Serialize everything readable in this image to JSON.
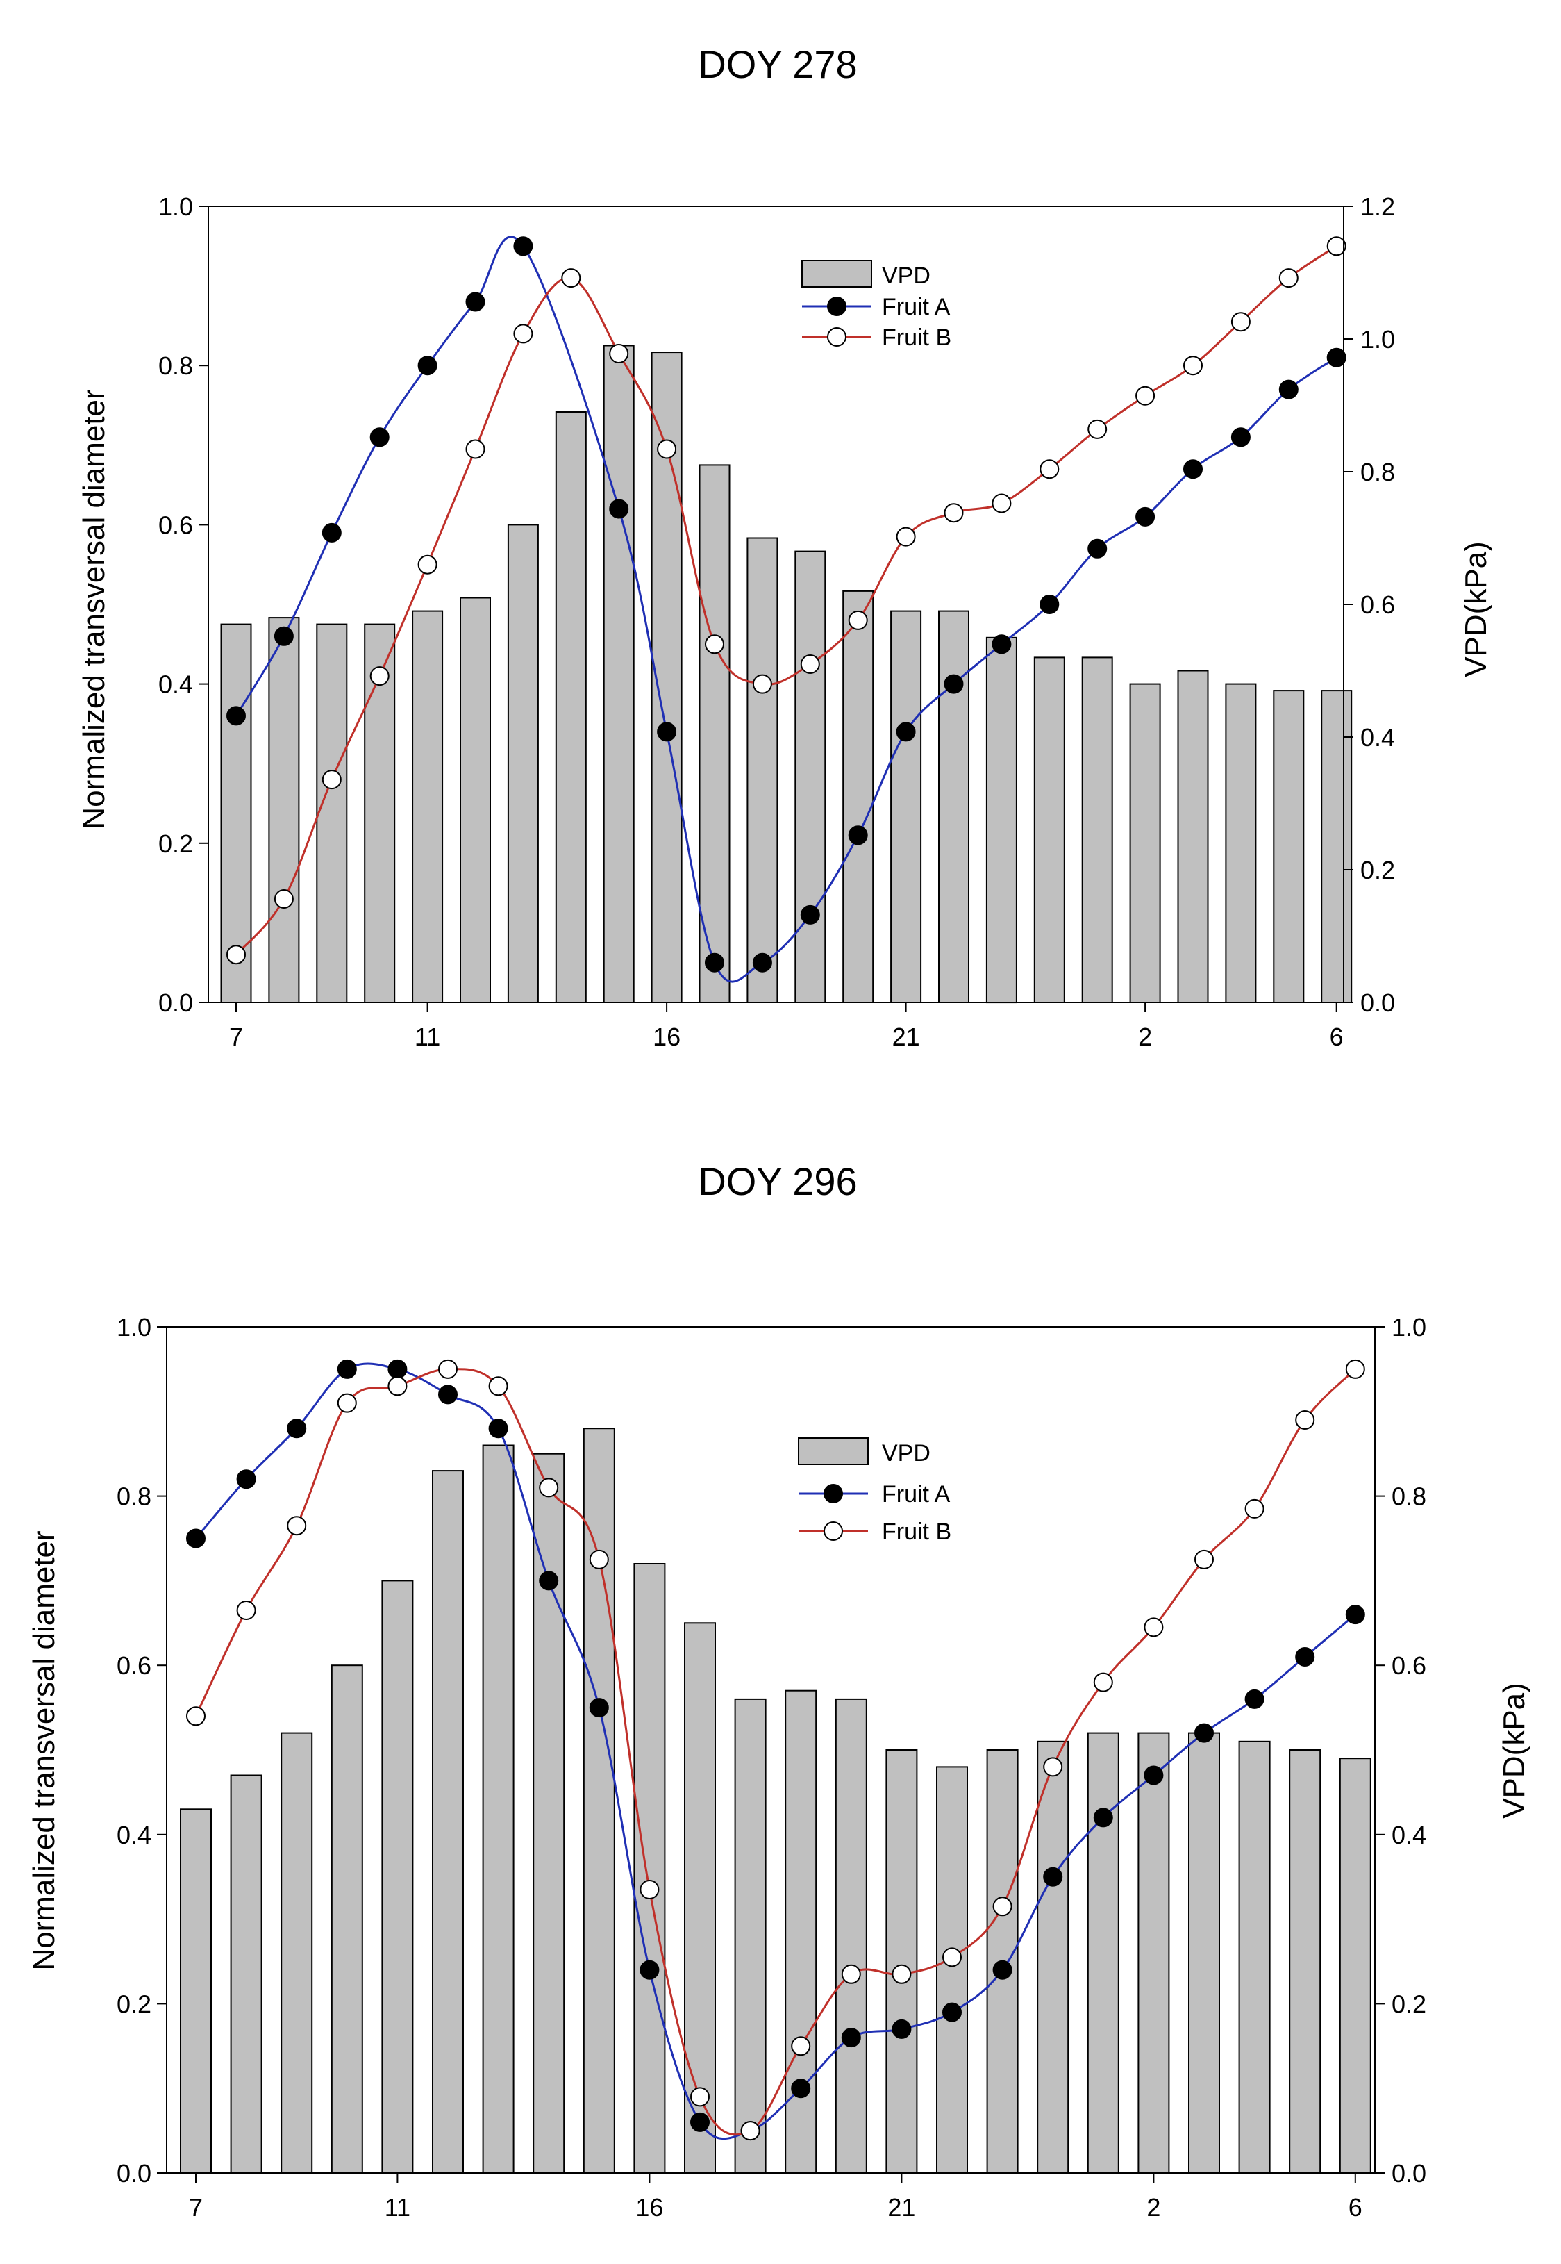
{
  "chart_data": [
    {
      "type": "bar+line",
      "title": "DOY 278",
      "ylabel": "Normalized transversal diameter",
      "y2label": "VPD(kPa)",
      "ylim": [
        0,
        1.0
      ],
      "y2lim": [
        0,
        1.2
      ],
      "x_tick_labels": [
        "7",
        "11",
        "16",
        "21",
        "2",
        "6"
      ],
      "y_ticks": [
        "0.0",
        "0.2",
        "0.4",
        "0.6",
        "0.8",
        "1.0"
      ],
      "y2_ticks": [
        "0.0",
        "0.2",
        "0.4",
        "0.6",
        "0.8",
        "1.0",
        "1.2"
      ],
      "hours": [
        7,
        8,
        9,
        10,
        11,
        12,
        13,
        14,
        15,
        16,
        17,
        18,
        19,
        20,
        21,
        22,
        23,
        0,
        1,
        2,
        3,
        4,
        5,
        6
      ],
      "legend": [
        "VPD",
        "Fruit A",
        "Fruit B"
      ],
      "series": [
        {
          "name": "VPD",
          "axis": "right",
          "kind": "bar",
          "color": "#c0c0c0",
          "values": [
            0.57,
            0.58,
            0.57,
            0.57,
            0.59,
            0.61,
            0.72,
            0.89,
            0.99,
            0.98,
            0.81,
            0.7,
            0.68,
            0.62,
            0.59,
            0.59,
            0.55,
            0.52,
            0.52,
            0.48,
            0.5,
            0.48,
            0.47,
            0.47
          ]
        },
        {
          "name": "Fruit A",
          "axis": "left",
          "kind": "line",
          "color": "#1f2fb4",
          "marker": "filled",
          "values": [
            0.36,
            0.46,
            0.59,
            0.71,
            0.8,
            0.88,
            0.95,
            null,
            0.62,
            0.34,
            0.05,
            0.05,
            0.11,
            0.21,
            0.34,
            0.4,
            0.45,
            0.5,
            0.57,
            0.61,
            0.67,
            0.71,
            0.77,
            0.81
          ]
        },
        {
          "name": "Fruit B",
          "axis": "left",
          "kind": "line",
          "color": "#c0302a",
          "marker": "open",
          "values": [
            0.06,
            0.13,
            0.28,
            0.41,
            0.55,
            0.695,
            0.84,
            0.91,
            0.815,
            0.695,
            0.45,
            0.4,
            0.425,
            0.48,
            0.585,
            0.615,
            0.627,
            0.67,
            0.72,
            0.762,
            0.8,
            0.855,
            0.91,
            0.95
          ]
        }
      ]
    },
    {
      "type": "bar+line",
      "title": "DOY 296",
      "ylabel": "Normalized transversal diameter",
      "y2label": "VPD(kPa)",
      "ylim": [
        0,
        1.0
      ],
      "y2lim": [
        0,
        1.0
      ],
      "x_tick_labels": [
        "7",
        "11",
        "16",
        "21",
        "2",
        "6"
      ],
      "y_ticks": [
        "0.0",
        "0.2",
        "0.4",
        "0.6",
        "0.8",
        "1.0"
      ],
      "y2_ticks": [
        "0.0",
        "0.2",
        "0.4",
        "0.6",
        "0.8",
        "1.0"
      ],
      "hours": [
        7,
        8,
        9,
        10,
        11,
        12,
        13,
        14,
        15,
        16,
        17,
        18,
        19,
        20,
        21,
        22,
        23,
        0,
        1,
        2,
        3,
        4,
        5,
        6
      ],
      "legend": [
        "VPD",
        "Fruit A",
        "Fruit B"
      ],
      "series": [
        {
          "name": "VPD",
          "axis": "right",
          "kind": "bar",
          "color": "#c0c0c0",
          "values": [
            0.43,
            0.47,
            0.52,
            0.6,
            0.7,
            0.83,
            0.86,
            0.85,
            0.88,
            0.72,
            0.65,
            0.56,
            0.57,
            0.56,
            0.5,
            0.48,
            0.5,
            0.51,
            0.52,
            0.52,
            0.52,
            0.51,
            0.5,
            0.49
          ]
        },
        {
          "name": "Fruit A",
          "axis": "left",
          "kind": "line",
          "color": "#1f2fb4",
          "marker": "filled",
          "values": [
            0.75,
            0.82,
            0.88,
            0.95,
            0.95,
            0.92,
            0.88,
            0.7,
            0.55,
            0.24,
            0.06,
            0.05,
            0.1,
            0.16,
            0.17,
            0.19,
            0.24,
            0.35,
            0.42,
            0.47,
            0.52,
            0.56,
            0.61,
            0.66
          ]
        },
        {
          "name": "Fruit B",
          "axis": "left",
          "kind": "line",
          "color": "#c0302a",
          "marker": "open",
          "values": [
            0.54,
            0.665,
            0.765,
            0.91,
            0.93,
            0.95,
            0.93,
            0.81,
            0.725,
            0.335,
            0.09,
            0.05,
            0.15,
            0.235,
            0.235,
            0.255,
            0.315,
            0.48,
            0.58,
            0.645,
            0.725,
            0.785,
            0.89,
            0.95
          ]
        }
      ]
    }
  ]
}
